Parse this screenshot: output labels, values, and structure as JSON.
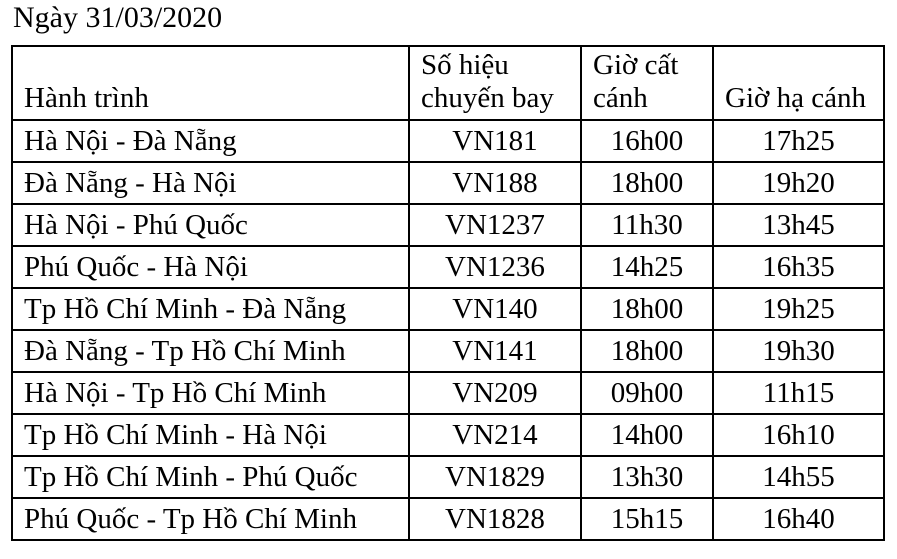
{
  "title": "Ngày 31/03/2020",
  "table": {
    "columns": [
      "Hành trình",
      "Số hiệu chuyến bay",
      "Giờ cất cánh",
      "Giờ hạ cánh"
    ],
    "rows": [
      [
        "Hà Nội - Đà Nẵng",
        "VN181",
        "16h00",
        "17h25"
      ],
      [
        "Đà Nẵng - Hà Nội",
        "VN188",
        "18h00",
        "19h20"
      ],
      [
        "Hà Nội - Phú Quốc",
        "VN1237",
        "11h30",
        "13h45"
      ],
      [
        "Phú Quốc - Hà Nội",
        "VN1236",
        "14h25",
        "16h35"
      ],
      [
        "Tp Hồ Chí Minh - Đà Nẵng",
        "VN140",
        "18h00",
        "19h25"
      ],
      [
        "Đà Nẵng - Tp Hồ Chí Minh",
        "VN141",
        "18h00",
        "19h30"
      ],
      [
        "Hà Nội - Tp Hồ Chí Minh",
        "VN209",
        "09h00",
        "11h15"
      ],
      [
        "Tp Hồ Chí Minh - Hà Nội",
        "VN214",
        "14h00",
        "16h10"
      ],
      [
        "Tp Hồ Chí Minh - Phú Quốc",
        "VN1829",
        "13h30",
        "14h55"
      ],
      [
        "Phú Quốc - Tp Hồ Chí Minh",
        "VN1828",
        "15h15",
        "16h40"
      ]
    ]
  }
}
